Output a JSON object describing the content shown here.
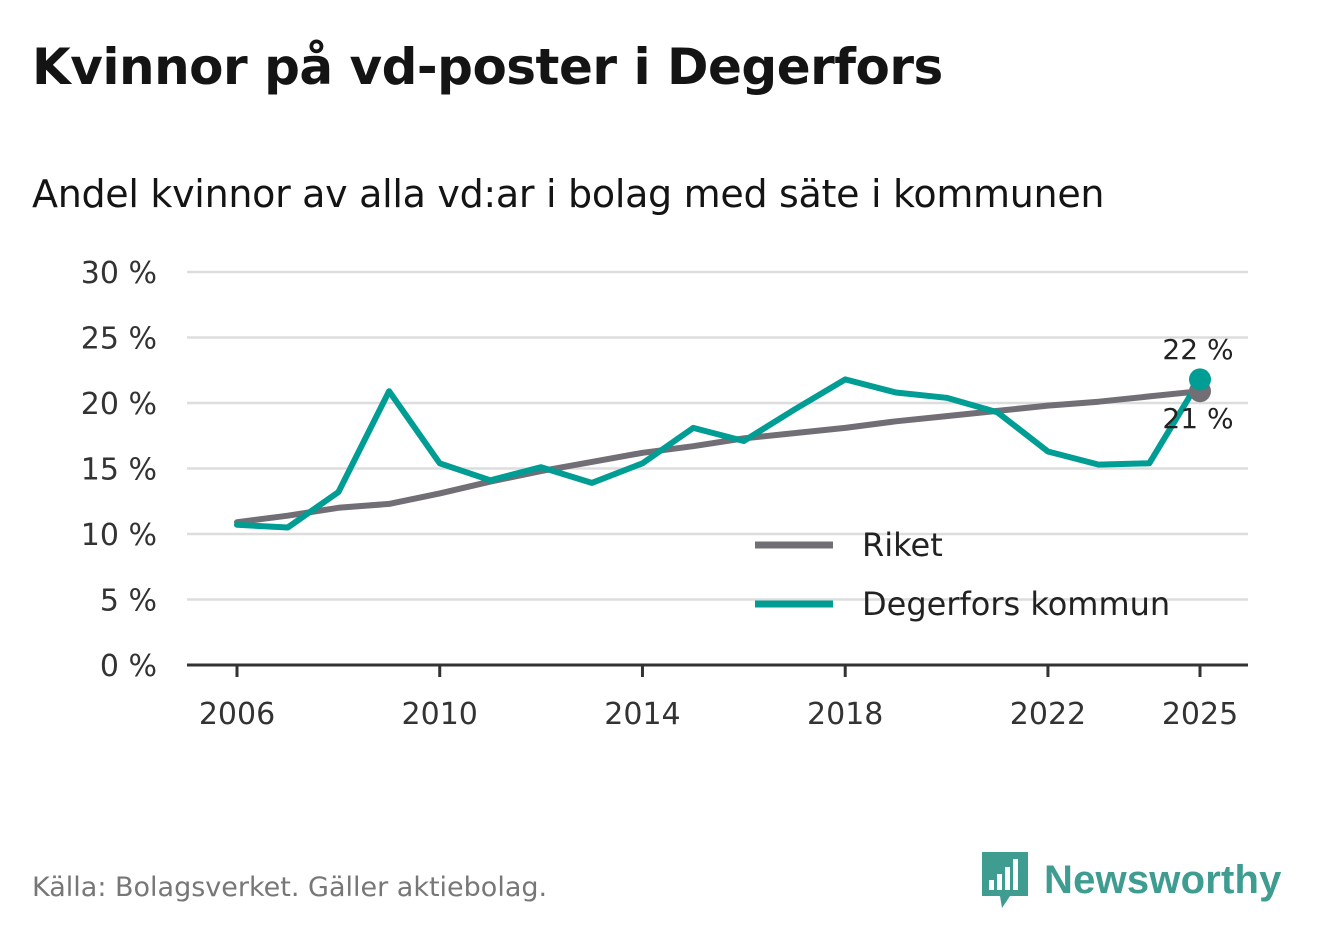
{
  "title": "Kvinnor på vd-poster i Degerfors",
  "subtitle": "Andel kvinnor av alla vd:ar i bolag med säte i kommunen",
  "source": "Källa: Bolagsverket. Gäller aktiebolag.",
  "brand": {
    "name": "Newsworthy",
    "icon": "bar-chart-icon"
  },
  "colors": {
    "riket": "#716f75",
    "degerfors": "#009d94",
    "grid": "#dddddd",
    "axis": "#333333"
  },
  "chart_data": {
    "type": "line",
    "title": "Kvinnor på vd-poster i Degerfors",
    "subtitle": "Andel kvinnor av alla vd:ar i bolag med säte i kommunen",
    "xlabel": "",
    "ylabel": "",
    "x": [
      2006,
      2007,
      2008,
      2009,
      2010,
      2011,
      2012,
      2013,
      2014,
      2015,
      2016,
      2017,
      2018,
      2019,
      2020,
      2021,
      2022,
      2023,
      2024,
      2025
    ],
    "xticks": [
      2006,
      2010,
      2014,
      2018,
      2022,
      2025
    ],
    "xtick_labels": [
      "2006",
      "2010",
      "2014",
      "2018",
      "2022",
      "2025"
    ],
    "ylim": [
      0,
      30
    ],
    "yticks": [
      0,
      5,
      10,
      15,
      20,
      25,
      30
    ],
    "ytick_labels": [
      "0 %",
      "5 %",
      "10 %",
      "15 %",
      "20 %",
      "25 %",
      "30 %"
    ],
    "grid": true,
    "legend_position": "bottom-right",
    "series": [
      {
        "name": "Riket",
        "key": "riket",
        "values": [
          10.9,
          11.4,
          12.0,
          12.3,
          13.1,
          14.0,
          14.8,
          15.5,
          16.2,
          16.7,
          17.3,
          17.7,
          18.1,
          18.6,
          19.0,
          19.4,
          19.8,
          20.1,
          20.5,
          20.9
        ],
        "end_label": "21 %"
      },
      {
        "name": "Degerfors kommun",
        "key": "degerfors",
        "values": [
          10.7,
          10.5,
          13.2,
          20.9,
          15.4,
          14.1,
          15.1,
          13.9,
          15.4,
          18.1,
          17.1,
          19.5,
          21.8,
          20.8,
          20.4,
          19.3,
          16.3,
          15.3,
          15.4,
          21.8
        ],
        "end_label": "22 %"
      }
    ]
  }
}
